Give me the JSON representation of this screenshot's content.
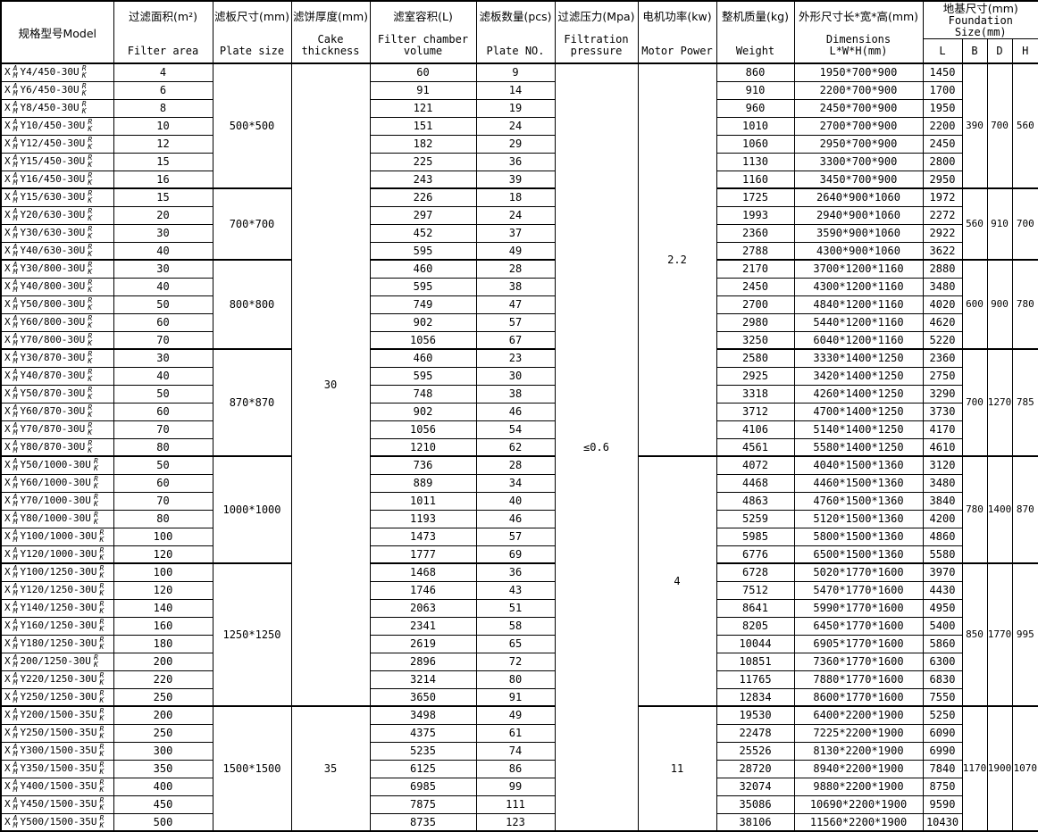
{
  "table": {
    "columns": {
      "model": {
        "zh": "规格型号Model"
      },
      "filter_area": {
        "zh": "过滤面积(m²)",
        "en": "Filter area"
      },
      "plate_size": {
        "zh": "滤板尺寸(mm)",
        "en": "Plate size"
      },
      "cake_thickness": {
        "zh": "滤饼厚度(mm)",
        "en": "Cake thickness"
      },
      "chamber_volume": {
        "zh": "滤室容积(L)",
        "en": "Filter chamber\nvolume"
      },
      "plate_count": {
        "zh": "滤板数量(pcs)",
        "en": "Plate NO."
      },
      "pressure": {
        "zh": "过滤压力(Mpa)",
        "en": "Filtration\npressure"
      },
      "motor_power": {
        "zh": "电机功率(kw)",
        "en": "Motor Power"
      },
      "weight": {
        "zh": "整机质量(kg)",
        "en": "Weight"
      },
      "dimensions": {
        "zh": "外形尺寸长*宽*高(mm)",
        "en": "Dimensions L*W*H(mm)"
      },
      "foundation": {
        "zh": "地基尺寸(mm)",
        "en": "Foundation Size(mm)",
        "sub": [
          "L",
          "B",
          "D",
          "H"
        ]
      }
    },
    "model_affix": {
      "prefix": "X",
      "prefix_stack": [
        "A",
        "M"
      ],
      "suffix_stack": [
        "R",
        "K"
      ]
    },
    "merges": {
      "cake_thickness": [
        {
          "value": "30",
          "rows": 36
        },
        {
          "value": "35",
          "rows": 7
        }
      ],
      "pressure": [
        {
          "value": "≤0.6",
          "rows": 43
        }
      ],
      "motor_power": [
        {
          "value": "2.2",
          "rows": 22
        },
        {
          "value": "4",
          "rows": 14
        },
        {
          "value": "11",
          "rows": 7
        }
      ]
    },
    "groups": [
      {
        "plate_size": "500*500",
        "foundation": [
          "390",
          "700",
          "560"
        ],
        "rows": [
          [
            "Y4/450-30U",
            "4",
            "60",
            "9",
            "860",
            "1950*700*900",
            "1450"
          ],
          [
            "Y6/450-30U",
            "6",
            "91",
            "14",
            "910",
            "2200*700*900",
            "1700"
          ],
          [
            "Y8/450-30U",
            "8",
            "121",
            "19",
            "960",
            "2450*700*900",
            "1950"
          ],
          [
            "Y10/450-30U",
            "10",
            "151",
            "24",
            "1010",
            "2700*700*900",
            "2200"
          ],
          [
            "Y12/450-30U",
            "12",
            "182",
            "29",
            "1060",
            "2950*700*900",
            "2450"
          ],
          [
            "Y15/450-30U",
            "15",
            "225",
            "36",
            "1130",
            "3300*700*900",
            "2800"
          ],
          [
            "Y16/450-30U",
            "16",
            "243",
            "39",
            "1160",
            "3450*700*900",
            "2950"
          ]
        ]
      },
      {
        "plate_size": "700*700",
        "foundation": [
          "560",
          "910",
          "700"
        ],
        "rows": [
          [
            "Y15/630-30U",
            "15",
            "226",
            "18",
            "1725",
            "2640*900*1060",
            "1972"
          ],
          [
            "Y20/630-30U",
            "20",
            "297",
            "24",
            "1993",
            "2940*900*1060",
            "2272"
          ],
          [
            "Y30/630-30U",
            "30",
            "452",
            "37",
            "2360",
            "3590*900*1060",
            "2922"
          ],
          [
            "Y40/630-30U",
            "40",
            "595",
            "49",
            "2788",
            "4300*900*1060",
            "3622"
          ]
        ]
      },
      {
        "plate_size": "800*800",
        "foundation": [
          "600",
          "900",
          "780"
        ],
        "rows": [
          [
            "Y30/800-30U",
            "30",
            "460",
            "28",
            "2170",
            "3700*1200*1160",
            "2880"
          ],
          [
            "Y40/800-30U",
            "40",
            "595",
            "38",
            "2450",
            "4300*1200*1160",
            "3480"
          ],
          [
            "Y50/800-30U",
            "50",
            "749",
            "47",
            "2700",
            "4840*1200*1160",
            "4020"
          ],
          [
            "Y60/800-30U",
            "60",
            "902",
            "57",
            "2980",
            "5440*1200*1160",
            "4620"
          ],
          [
            "Y70/800-30U",
            "70",
            "1056",
            "67",
            "3250",
            "6040*1200*1160",
            "5220"
          ]
        ]
      },
      {
        "plate_size": "870*870",
        "foundation": [
          "700",
          "1270",
          "785"
        ],
        "rows": [
          [
            "Y30/870-30U",
            "30",
            "460",
            "23",
            "2580",
            "3330*1400*1250",
            "2360"
          ],
          [
            "Y40/870-30U",
            "40",
            "595",
            "30",
            "2925",
            "3420*1400*1250",
            "2750"
          ],
          [
            "Y50/870-30U",
            "50",
            "748",
            "38",
            "3318",
            "4260*1400*1250",
            "3290"
          ],
          [
            "Y60/870-30U",
            "60",
            "902",
            "46",
            "3712",
            "4700*1400*1250",
            "3730"
          ],
          [
            "Y70/870-30U",
            "70",
            "1056",
            "54",
            "4106",
            "5140*1400*1250",
            "4170"
          ],
          [
            "Y80/870-30U",
            "80",
            "1210",
            "62",
            "4561",
            "5580*1400*1250",
            "4610"
          ]
        ]
      },
      {
        "plate_size": "1000*1000",
        "foundation": [
          "780",
          "1400",
          "870"
        ],
        "rows": [
          [
            "Y50/1000-30U",
            "50",
            "736",
            "28",
            "4072",
            "4040*1500*1360",
            "3120"
          ],
          [
            "Y60/1000-30U",
            "60",
            "889",
            "34",
            "4468",
            "4460*1500*1360",
            "3480"
          ],
          [
            "Y70/1000-30U",
            "70",
            "1011",
            "40",
            "4863",
            "4760*1500*1360",
            "3840"
          ],
          [
            "Y80/1000-30U",
            "80",
            "1193",
            "46",
            "5259",
            "5120*1500*1360",
            "4200"
          ],
          [
            "Y100/1000-30U",
            "100",
            "1473",
            "57",
            "5985",
            "5800*1500*1360",
            "4860"
          ],
          [
            "Y120/1000-30U",
            "120",
            "1777",
            "69",
            "6776",
            "6500*1500*1360",
            "5580"
          ]
        ]
      },
      {
        "plate_size": "1250*1250",
        "foundation": [
          "850",
          "1770",
          "995"
        ],
        "rows": [
          [
            "Y100/1250-30U",
            "100",
            "1468",
            "36",
            "6728",
            "5020*1770*1600",
            "3970"
          ],
          [
            "Y120/1250-30U",
            "120",
            "1746",
            "43",
            "7512",
            "5470*1770*1600",
            "4430"
          ],
          [
            "Y140/1250-30U",
            "140",
            "2063",
            "51",
            "8641",
            "5990*1770*1600",
            "4950"
          ],
          [
            "Y160/1250-30U",
            "160",
            "2341",
            "58",
            "8205",
            "6450*1770*1600",
            "5400"
          ],
          [
            "Y180/1250-30U",
            "180",
            "2619",
            "65",
            "10044",
            "6905*1770*1600",
            "5860"
          ],
          [
            "200/1250-30U",
            "200",
            "2896",
            "72",
            "10851",
            "7360*1770*1600",
            "6300"
          ],
          [
            "Y220/1250-30U",
            "220",
            "3214",
            "80",
            "11765",
            "7880*1770*1600",
            "6830"
          ],
          [
            "Y250/1250-30U",
            "250",
            "3650",
            "91",
            "12834",
            "8600*1770*1600",
            "7550"
          ]
        ]
      },
      {
        "plate_size": "1500*1500",
        "foundation": [
          "1170",
          "1900",
          "1070"
        ],
        "rows": [
          [
            "Y200/1500-35U",
            "200",
            "3498",
            "49",
            "19530",
            "6400*2200*1900",
            "5250"
          ],
          [
            "Y250/1500-35U",
            "250",
            "4375",
            "61",
            "22478",
            "7225*2200*1900",
            "6090"
          ],
          [
            "Y300/1500-35U",
            "300",
            "5235",
            "74",
            "25526",
            "8130*2200*1900",
            "6990"
          ],
          [
            "Y350/1500-35U",
            "350",
            "6125",
            "86",
            "28720",
            "8940*2200*1900",
            "7840"
          ],
          [
            "Y400/1500-35U",
            "400",
            "6985",
            "99",
            "32074",
            "9880*2200*1900",
            "8750"
          ],
          [
            "Y450/1500-35U",
            "450",
            "7875",
            "111",
            "35086",
            "10690*2200*1900",
            "9590"
          ],
          [
            "Y500/1500-35U",
            "500",
            "8735",
            "123",
            "38106",
            "11560*2200*1900",
            "10430"
          ]
        ]
      }
    ]
  }
}
